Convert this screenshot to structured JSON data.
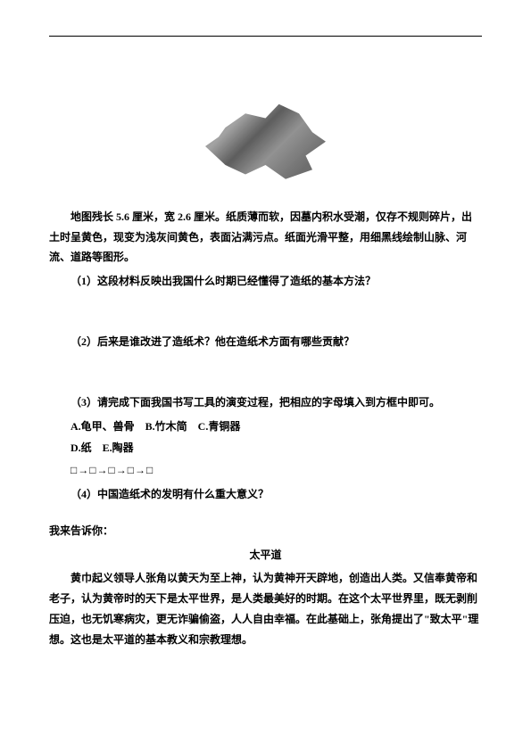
{
  "intro": {
    "line1": "地图残长 5.6 厘米，宽 2.6 厘米。纸质薄而软，因墓内积水受潮，仅存不规则碎片，出土时呈黄色，现变为浅灰间黄色，表面沾满污点。纸面光滑平整，用细黑线绘制山脉、河流、道路等图形。"
  },
  "questions": {
    "q1": "（1）这段材料反映出我国什么时期已经懂得了造纸的基本方法？",
    "q2": "（2）后来是谁改进了造纸术？他在造纸术方面有哪些贡献？",
    "q3": "（3）请完成下面我国书写工具的演变过程，把相应的字母填入到方框中即可。",
    "options1": "A.龟甲、兽骨　B.竹木简　C.青铜器",
    "options2": "D.纸　E.陶器",
    "boxes": "□→□→□→□→□",
    "q4": "（4）中国造纸术的发明有什么重大意义？"
  },
  "section": {
    "label": "我来告诉你：",
    "title": "太平道",
    "p1": "黄巾起义领导人张角以黄天为至上神，认为黄神开天辟地，创造出人类。又信奉黄帝和老子，认为黄帝时的天下是太平世界，是人类最美好的时期。在这个太平世界里，既无剥削压迫，也无饥寒病灾，更无诈骗偷盗，人人自由幸福。在此基础上，张角提出了\"致太平\"理想。这也是太平道的基本教义和宗教理想。"
  },
  "colors": {
    "text": "#000000",
    "background": "#ffffff"
  }
}
